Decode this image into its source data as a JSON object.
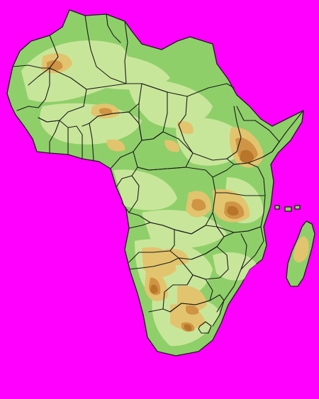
{
  "map": {
    "region": "Africa",
    "style": "physical relief map with political borders, no labels",
    "colors": {
      "background": "#ff00ff",
      "lowland": "#8fcf6a",
      "plain": "#c8e69a",
      "plateau": "#e2c46e",
      "highland": "#cf9444",
      "peak": "#b8762a",
      "border": "#1a1a1a"
    }
  }
}
